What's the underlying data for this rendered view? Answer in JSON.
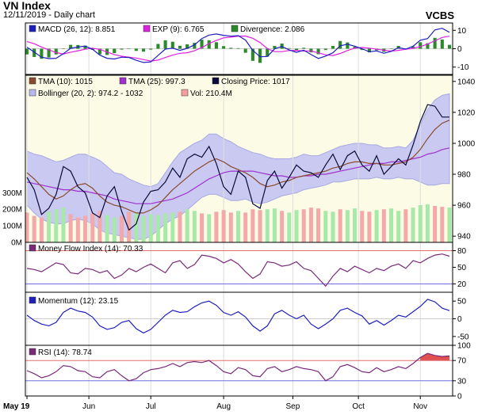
{
  "header": {
    "title": "VN Index",
    "subtitle": "12/11/2019 - Daily chart",
    "brand": "VCBS"
  },
  "chart_data": [
    {
      "type": "line",
      "panel": "macd",
      "legend": [
        {
          "label": "MACD (26, 12): 8.851",
          "color": "#1f1fbf"
        },
        {
          "label": "EXP (9): 6.765",
          "color": "#e020e0"
        },
        {
          "label": "Divergence: 2.086",
          "color": "#2a8a2a"
        }
      ],
      "y_ticks": [
        "10",
        "0",
        "-10"
      ],
      "ylim": [
        -14,
        14
      ],
      "series": [
        {
          "name": "MACD",
          "color": "#1f1fbf",
          "values": [
            0.8,
            -1.8,
            -4.6,
            -5.4,
            -5.2,
            -2.7,
            0.2,
            0.9,
            1.4,
            -0.3,
            -3.5,
            -5.2,
            -5.6,
            -4.6,
            -4.8,
            -6.3,
            -7.5,
            -7.2,
            -3.6,
            -0.2,
            0.3,
            -0.9,
            0.2,
            2.1,
            5.5,
            7.4,
            8.0,
            7.3,
            6.8,
            7.1,
            4.7,
            -0.9,
            -4.4,
            -4.2,
            -0.1,
            1.2,
            -0.7,
            -2.0,
            -0.8,
            -3.2,
            -5.3,
            -4.0,
            -2.2,
            1.6,
            2.4,
            1.4,
            0.0,
            -1.7,
            -1.2,
            -2.5,
            -1.4,
            0.6,
            -0.2,
            1.4,
            4.6,
            5.5,
            10.2,
            11.1,
            8.9
          ]
        },
        {
          "name": "EXP",
          "color": "#e020e0",
          "values": [
            3.9,
            2.7,
            0.9,
            -0.6,
            -2.1,
            -2.9,
            -1.9,
            -1.1,
            -0.3,
            0.3,
            -0.4,
            -1.8,
            -3.2,
            -4.1,
            -4.6,
            -5.1,
            -5.9,
            -6.7,
            -6.2,
            -4.8,
            -3.5,
            -2.5,
            -2.2,
            -1.1,
            0.6,
            2.8,
            4.5,
            5.9,
            6.3,
            6.8,
            6.9,
            5.7,
            3.3,
            0.1,
            -1.6,
            -1.6,
            -1.0,
            -0.9,
            -1.3,
            -1.2,
            -2.3,
            -3.3,
            -3.7,
            -2.6,
            -1.0,
            0.3,
            0.7,
            0.3,
            -0.3,
            -0.8,
            -1.3,
            -0.9,
            -0.3,
            0.2,
            1.1,
            2.5,
            4.3,
            6.1,
            6.8
          ]
        },
        {
          "name": "Divergence",
          "color": "#2a8a2a",
          "type": "histogram",
          "values": [
            -3.1,
            -4.5,
            -5.5,
            -4.8,
            -3.1,
            0.2,
            2.1,
            2.0,
            1.7,
            -0.6,
            -3.1,
            -3.4,
            -2.4,
            -0.5,
            -0.2,
            -1.2,
            -1.6,
            -0.5,
            2.6,
            4.6,
            3.8,
            1.6,
            2.4,
            3.2,
            4.9,
            4.6,
            3.5,
            1.4,
            0.5,
            0.3,
            -2.2,
            -6.6,
            -7.7,
            -4.3,
            1.5,
            2.8,
            0.3,
            -1.1,
            0.5,
            -2.0,
            -3.0,
            -0.7,
            1.5,
            4.2,
            3.4,
            1.1,
            -0.7,
            -2.0,
            -0.9,
            -1.7,
            -0.1,
            1.5,
            0.1,
            1.2,
            3.5,
            3.0,
            5.9,
            5.0,
            2.1
          ]
        }
      ]
    },
    {
      "type": "line",
      "panel": "price",
      "legend": [
        {
          "label": "TMA (10): 1015",
          "color": "#8b4a2b"
        },
        {
          "label": "TMA (25): 997.3",
          "color": "#a030d0"
        },
        {
          "label": "Closing Price: 1017",
          "color": "#0b0b3b"
        },
        {
          "label": "Bollinger (20, 2): 974.2 - 1032",
          "color": "#b8b8ee"
        },
        {
          "label": "Vol: 210.4M",
          "color": "#f4a0a0"
        }
      ],
      "y_ticks": [
        "1040",
        "1020",
        "1000",
        "980",
        "960",
        "940"
      ],
      "ylim": [
        936,
        1044
      ],
      "series": [
        {
          "name": "Closing Price",
          "color": "#0b0b3b",
          "values": [
            978,
            970,
            954,
            958,
            967,
            985,
            982,
            972,
            968,
            955,
            952,
            966,
            972,
            956,
            944,
            948,
            962,
            969,
            970,
            975,
            984,
            978,
            990,
            993,
            991,
            998,
            987,
            972,
            967,
            982,
            978,
            961,
            958,
            976,
            982,
            971,
            978,
            986,
            982,
            981,
            978,
            986,
            993,
            983,
            992,
            995,
            986,
            982,
            992,
            980,
            985,
            990,
            986,
            999,
            1014,
            1025,
            1024,
            1017,
            1017
          ]
        },
        {
          "name": "TMA (10)",
          "color": "#8b4a2b",
          "values": [
            981,
            977,
            972,
            967,
            964,
            966,
            970,
            973,
            974,
            971,
            966,
            962,
            960,
            959,
            957,
            955,
            955,
            957,
            960,
            965,
            970,
            974,
            978,
            982,
            985,
            988,
            990,
            988,
            985,
            983,
            981,
            978,
            974,
            972,
            973,
            975,
            976,
            978,
            979,
            980,
            981,
            982,
            984,
            985,
            987,
            988,
            988,
            987,
            987,
            986,
            986,
            987,
            988,
            991,
            996,
            1003,
            1009,
            1013,
            1015
          ]
        },
        {
          "name": "TMA (25)",
          "color": "#a030d0",
          "values": [
            975,
            974,
            973,
            972,
            971,
            970,
            970,
            969,
            969,
            968,
            967,
            966,
            964,
            963,
            962,
            961,
            961,
            961,
            962,
            963,
            964,
            966,
            968,
            971,
            974,
            977,
            979,
            981,
            982,
            982,
            982,
            982,
            981,
            980,
            979,
            979,
            978,
            978,
            979,
            979,
            980,
            980,
            981,
            982,
            983,
            984,
            985,
            986,
            987,
            987,
            988,
            988,
            989,
            990,
            991,
            993,
            994,
            996,
            997
          ]
        },
        {
          "name": "Bollinger Upper",
          "color": "#b8b8ee",
          "values": [
            995,
            993,
            992,
            990,
            988,
            989,
            991,
            993,
            993,
            991,
            989,
            985,
            981,
            980,
            977,
            975,
            973,
            972,
            974,
            981,
            988,
            994,
            997,
            1000,
            1002,
            1006,
            1006,
            1003,
            1001,
            998,
            996,
            994,
            993,
            991,
            990,
            990,
            990,
            991,
            993,
            992,
            992,
            994,
            996,
            998,
            999,
            1000,
            1000,
            999,
            999,
            997,
            997,
            998,
            997,
            1002,
            1012,
            1022,
            1028,
            1031,
            1032
          ]
        },
        {
          "name": "Bollinger Lower",
          "color": "#b8b8ee",
          "values": [
            960,
            955,
            951,
            949,
            948,
            948,
            950,
            951,
            950,
            948,
            944,
            942,
            941,
            940,
            939,
            938,
            938,
            940,
            944,
            948,
            951,
            953,
            957,
            961,
            965,
            967,
            967,
            965,
            963,
            963,
            964,
            962,
            961,
            962,
            964,
            966,
            967,
            968,
            970,
            971,
            972,
            973,
            975,
            975,
            976,
            977,
            977,
            977,
            978,
            977,
            977,
            978,
            977,
            977,
            975,
            973,
            973,
            974,
            974
          ]
        }
      ]
    },
    {
      "type": "bar",
      "panel": "volume",
      "y_ticks": [
        "300M",
        "200M",
        "100M",
        "0M"
      ],
      "ylim": [
        0,
        340
      ],
      "series": [
        {
          "name": "Vol",
          "values": [
            180,
            160,
            150,
            185,
            200,
            210,
            170,
            150,
            160,
            175,
            190,
            165,
            150,
            160,
            185,
            180,
            160,
            170,
            165,
            175,
            180,
            185,
            200,
            190,
            175,
            170,
            185,
            195,
            180,
            190,
            180,
            200,
            195,
            200,
            205,
            190,
            180,
            195,
            200,
            210,
            205,
            190,
            185,
            200,
            195,
            205,
            190,
            185,
            195,
            200,
            205,
            190,
            200,
            210,
            225,
            230,
            220,
            215,
            210
          ]
        },
        {
          "name": "Vol direction up",
          "values": [
            0,
            0,
            0,
            1,
            1,
            1,
            0,
            0,
            0,
            0,
            0,
            1,
            1,
            0,
            0,
            1,
            1,
            1,
            1,
            1,
            1,
            0,
            1,
            1,
            0,
            1,
            0,
            0,
            0,
            1,
            0,
            0,
            0,
            1,
            1,
            0,
            1,
            1,
            0,
            0,
            0,
            1,
            1,
            0,
            1,
            1,
            0,
            0,
            1,
            0,
            1,
            1,
            0,
            1,
            1,
            1,
            0,
            0,
            1
          ]
        }
      ]
    },
    {
      "type": "line",
      "panel": "mfi",
      "legend": [
        {
          "label": "Money Flow Index (14): 70.33",
          "color": "#7a2a7a"
        }
      ],
      "y_ticks": [
        "80",
        "50",
        "20"
      ],
      "ylim": [
        5,
        95
      ],
      "series": [
        {
          "name": "Money Flow Index",
          "color": "#7a2a7a",
          "values": [
            48,
            46,
            42,
            50,
            58,
            55,
            40,
            38,
            48,
            46,
            40,
            44,
            30,
            36,
            48,
            42,
            50,
            56,
            48,
            40,
            58,
            62,
            48,
            55,
            72,
            70,
            66,
            58,
            64,
            56,
            42,
            30,
            38,
            60,
            58,
            52,
            54,
            60,
            48,
            44,
            30,
            16,
            34,
            48,
            42,
            52,
            46,
            40,
            48,
            44,
            52,
            56,
            48,
            62,
            58,
            66,
            72,
            74,
            70
          ]
        }
      ]
    },
    {
      "type": "line",
      "panel": "momentum",
      "legend": [
        {
          "label": "Momentum (12): 23.15",
          "color": "#1f1fbf"
        }
      ],
      "y_ticks": [
        "50",
        "0",
        "-50"
      ],
      "ylim": [
        -75,
        75
      ],
      "series": [
        {
          "name": "Momentum",
          "color": "#1f1fbf",
          "values": [
            10,
            -5,
            -15,
            -20,
            -10,
            18,
            30,
            22,
            18,
            5,
            -20,
            -30,
            -25,
            -10,
            -5,
            -28,
            -40,
            -30,
            -10,
            10,
            24,
            18,
            20,
            34,
            45,
            50,
            38,
            18,
            10,
            20,
            5,
            -20,
            -35,
            -20,
            14,
            24,
            10,
            0,
            10,
            -15,
            -28,
            -15,
            0,
            24,
            30,
            18,
            8,
            -15,
            -5,
            -18,
            -5,
            10,
            5,
            20,
            35,
            55,
            48,
            30,
            23
          ]
        }
      ]
    },
    {
      "type": "line",
      "panel": "rsi",
      "legend": [
        {
          "label": "RSI (14): 78.74",
          "color": "#7a2a7a"
        }
      ],
      "y_ticks": [
        "100",
        "70",
        "30",
        "0"
      ],
      "ylim": [
        0,
        100
      ],
      "series": [
        {
          "name": "RSI",
          "color": "#7a2a7a",
          "values": [
            50,
            44,
            36,
            40,
            48,
            60,
            58,
            50,
            48,
            38,
            36,
            48,
            52,
            40,
            30,
            34,
            46,
            52,
            54,
            58,
            64,
            58,
            66,
            68,
            66,
            70,
            60,
            48,
            44,
            56,
            52,
            40,
            38,
            54,
            58,
            48,
            52,
            58,
            54,
            52,
            48,
            30,
            38,
            58,
            62,
            56,
            48,
            46,
            56,
            48,
            52,
            58,
            54,
            64,
            76,
            84,
            80,
            78,
            79
          ]
        }
      ]
    }
  ],
  "x_axis": {
    "labels": [
      "May 19",
      "Jun",
      "Jul",
      "Aug",
      "Sep",
      "Oct",
      "Nov"
    ]
  }
}
